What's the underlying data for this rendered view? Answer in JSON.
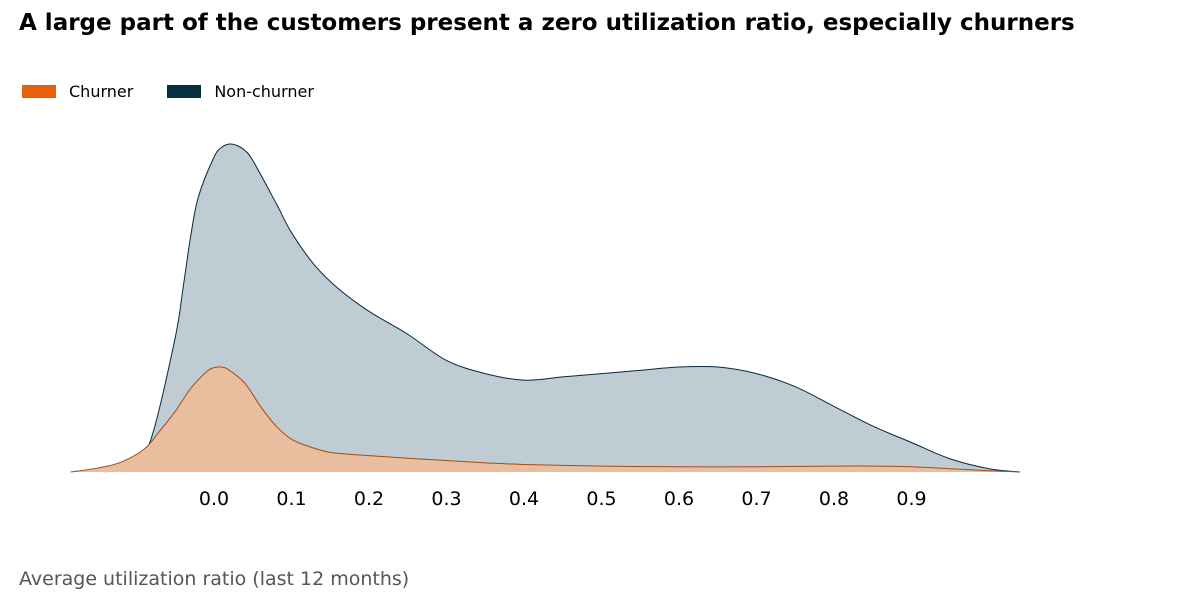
{
  "title": "A large part of the customers present a zero utilization ratio, especially churners",
  "chart_data": {
    "type": "area",
    "title": "A large part of the customers present a zero utilization ratio, especially churners",
    "xlabel": "Average utilization ratio (last 12 months)",
    "ylabel": "",
    "xlim": [
      -0.185,
      1.05
    ],
    "ylim": [
      0,
      1.0
    ],
    "xticks": [
      0.0,
      0.1,
      0.2,
      0.3,
      0.4,
      0.5,
      0.6,
      0.7,
      0.8,
      0.9
    ],
    "tick_labels": [
      "0.0",
      "0.1",
      "0.2",
      "0.3",
      "0.4",
      "0.5",
      "0.6",
      "0.7",
      "0.8",
      "0.9"
    ],
    "grid": false,
    "legend_position": "top-left",
    "series": [
      {
        "name": "Non-churner",
        "fill": "#c0ccd3",
        "stroke": "#04293f",
        "swatch": "#05303f",
        "x": [
          -0.14,
          -0.1,
          -0.08,
          -0.05,
          -0.04,
          -0.03,
          -0.02,
          0.0,
          0.01,
          0.02,
          0.03,
          0.04,
          0.05,
          0.08,
          0.1,
          0.13,
          0.16,
          0.2,
          0.25,
          0.3,
          0.35,
          0.4,
          0.45,
          0.5,
          0.55,
          0.6,
          0.65,
          0.7,
          0.75,
          0.8,
          0.85,
          0.9,
          0.95,
          1.0,
          1.04
        ],
        "y": [
          0.0,
          0.035,
          0.11,
          0.41,
          0.56,
          0.72,
          0.84,
          0.96,
          0.99,
          1.0,
          0.995,
          0.98,
          0.95,
          0.82,
          0.73,
          0.63,
          0.56,
          0.49,
          0.42,
          0.34,
          0.3,
          0.28,
          0.29,
          0.3,
          0.31,
          0.32,
          0.32,
          0.3,
          0.26,
          0.2,
          0.14,
          0.09,
          0.04,
          0.01,
          0.0
        ]
      },
      {
        "name": "Churner",
        "fill": "#e8be9e",
        "stroke": "#a84a12",
        "swatch": "#e8600c",
        "x": [
          -0.185,
          -0.15,
          -0.12,
          -0.09,
          -0.07,
          -0.05,
          -0.03,
          -0.01,
          0.0,
          0.01,
          0.02,
          0.04,
          0.06,
          0.08,
          0.1,
          0.12,
          0.15,
          0.2,
          0.25,
          0.3,
          0.35,
          0.4,
          0.5,
          0.6,
          0.7,
          0.8,
          0.85,
          0.9,
          0.95,
          1.0,
          1.04
        ],
        "y": [
          0.0,
          0.012,
          0.03,
          0.07,
          0.125,
          0.185,
          0.255,
          0.305,
          0.318,
          0.32,
          0.31,
          0.27,
          0.2,
          0.14,
          0.1,
          0.08,
          0.06,
          0.05,
          0.042,
          0.035,
          0.028,
          0.023,
          0.018,
          0.016,
          0.016,
          0.018,
          0.018,
          0.016,
          0.01,
          0.004,
          0.0
        ]
      }
    ]
  }
}
